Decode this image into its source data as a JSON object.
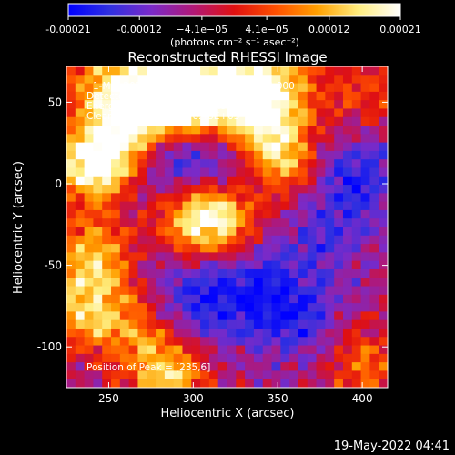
{
  "chart_data": {
    "type": "heatmap",
    "title": "Reconstructed RHESSI Image",
    "xlabel": "Heliocentric X (arcsec)",
    "ylabel": "Heliocentric Y (arcsec)",
    "xlim": [
      225,
      415
    ],
    "ylim": [
      -125,
      72
    ],
    "x_ticks": [
      250,
      300,
      350,
      400
    ],
    "y_ticks": [
      50,
      0,
      -50,
      -100
    ],
    "colorbar": {
      "range": [
        -0.00021,
        0.00021
      ],
      "tick_values": [
        -0.00021,
        -0.00012,
        -4.1e-05,
        4.1e-05,
        0.00012,
        0.00021
      ],
      "tick_labels": [
        "-0.00021",
        "-0.00012",
        "−4.1e−05",
        "4.1e−05",
        "0.00012",
        "0.00021"
      ],
      "units_label": "(photons cm⁻² s⁻¹ asec⁻²)",
      "colormap_stops": [
        "#0000ff",
        "#3030e0",
        "#7a2ac8",
        "#b01878",
        "#e01010",
        "#ff5000",
        "#ffa000",
        "#ffee80",
        "#ffffff"
      ]
    },
    "annotations": {
      "time_range": "1-Mar-2015 02:56:04.000 to 03:02:04.000",
      "detectors": "Detectors: 3F 5F 6F 7F 8F 9F  Att 0",
      "energy": "Energy Range: 25.0 - 50.0 keV",
      "method_counts": "Clean     Total counts: 6.48E+03",
      "peak": "Position of Peak = [235,6]"
    },
    "grid": {
      "nx": 36,
      "ny": 38,
      "hot_regions": [
        {
          "x": 285,
          "y": 58,
          "amp": 1.0
        },
        {
          "x": 300,
          "y": 48,
          "amp": 0.9
        },
        {
          "x": 320,
          "y": 60,
          "amp": 0.8
        },
        {
          "x": 340,
          "y": 40,
          "amp": 0.85
        },
        {
          "x": 355,
          "y": 15,
          "amp": 0.75
        },
        {
          "x": 240,
          "y": 10,
          "amp": 0.95
        },
        {
          "x": 255,
          "y": 25,
          "amp": 0.8
        },
        {
          "x": 270,
          "y": 50,
          "amp": 0.7
        },
        {
          "x": 300,
          "y": -20,
          "amp": 0.8
        },
        {
          "x": 320,
          "y": -25,
          "amp": 0.7
        },
        {
          "x": 240,
          "y": -45,
          "amp": 0.8
        },
        {
          "x": 235,
          "y": -80,
          "amp": 0.7
        },
        {
          "x": 265,
          "y": -85,
          "amp": 0.5
        },
        {
          "x": 285,
          "y": -115,
          "amp": 0.9
        },
        {
          "x": 400,
          "y": -110,
          "amp": 0.5
        },
        {
          "x": 400,
          "y": 55,
          "amp": 0.4
        },
        {
          "x": 245,
          "y": 60,
          "amp": 0.6
        },
        {
          "x": 350,
          "y": 65,
          "amp": 0.7
        }
      ],
      "cold_regions": [
        {
          "x": 395,
          "y": 5,
          "amp": 0.9
        },
        {
          "x": 330,
          "y": -60,
          "amp": 0.8
        },
        {
          "x": 360,
          "y": -80,
          "amp": 0.9
        },
        {
          "x": 300,
          "y": -75,
          "amp": 0.8
        },
        {
          "x": 285,
          "y": 10,
          "amp": 0.7
        },
        {
          "x": 380,
          "y": -30,
          "amp": 0.5
        },
        {
          "x": 310,
          "y": 20,
          "amp": 0.6
        }
      ]
    }
  },
  "footer": {
    "timestamp": "19-May-2022 04:41"
  }
}
